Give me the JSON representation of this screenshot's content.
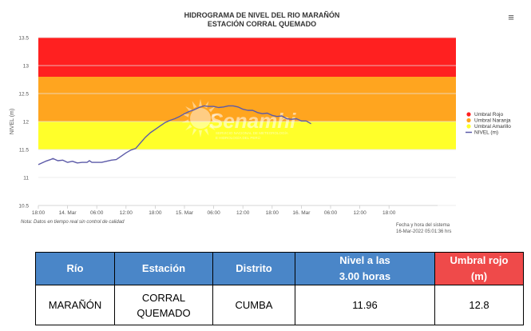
{
  "chart_data": {
    "type": "line",
    "title": "HIDROGRAMA DE NIVEL DEL RIO MARAÑÓN",
    "subtitle": "ESTACIÓN CORRAL QUEMADO",
    "ylabel": "NIVEL (m)",
    "ylim": [
      10.5,
      13.5
    ],
    "yticks": [
      "10.5",
      "11",
      "11.5",
      "12",
      "12.5",
      "13",
      "13.5"
    ],
    "x_range_hours": [
      0,
      60.5
    ],
    "xticks": [
      {
        "label": "18:00",
        "h": 0
      },
      {
        "label": "14. Mar",
        "h": 6
      },
      {
        "label": "06:00",
        "h": 12
      },
      {
        "label": "12:00",
        "h": 18
      },
      {
        "label": "18:00",
        "h": 24
      },
      {
        "label": "15. Mar",
        "h": 30
      },
      {
        "label": "06:00",
        "h": 36
      },
      {
        "label": "12:00",
        "h": 42
      },
      {
        "label": "18:00",
        "h": 48
      },
      {
        "label": "16. Mar",
        "h": 54
      },
      {
        "label": "06:00",
        "h": 60
      },
      {
        "label": "12:00",
        "h": 66
      },
      {
        "label": "18:00",
        "h": 72
      }
    ],
    "bands": [
      {
        "name": "Umbral Rojo",
        "from": 12.8,
        "to": 13.5,
        "color": "#ff2020"
      },
      {
        "name": "Umbral Naranja",
        "from": 12.0,
        "to": 12.8,
        "color": "#ffa51f"
      },
      {
        "name": "Umbral Amarillo",
        "from": 11.5,
        "to": 12.0,
        "color": "#ffff2a"
      }
    ],
    "series": [
      {
        "name": "NIVEL (m)",
        "color": "#5c5aa8",
        "x": [
          0,
          0.5,
          1.5,
          2.5,
          3,
          4,
          5,
          6,
          7,
          8,
          9,
          10,
          10.5,
          11,
          12,
          13,
          14,
          15,
          16,
          17,
          18,
          19,
          20,
          21,
          22,
          23,
          24,
          25,
          26,
          27,
          28,
          29,
          30,
          31,
          32,
          33,
          34,
          35,
          36,
          37,
          38,
          39,
          40,
          41,
          42,
          43,
          44,
          45,
          46,
          47,
          48,
          49,
          50,
          51,
          52,
          53,
          54,
          55,
          56
        ],
        "y": [
          11.23,
          11.25,
          11.29,
          11.32,
          11.34,
          11.3,
          11.31,
          11.27,
          11.29,
          11.26,
          11.27,
          11.27,
          11.3,
          11.27,
          11.27,
          11.27,
          11.29,
          11.31,
          11.32,
          11.38,
          11.44,
          11.49,
          11.52,
          11.62,
          11.72,
          11.8,
          11.86,
          11.92,
          11.98,
          12.02,
          12.05,
          12.09,
          12.14,
          12.18,
          12.21,
          12.25,
          12.28,
          12.27,
          12.27,
          12.25,
          12.26,
          12.28,
          12.28,
          12.26,
          12.22,
          12.2,
          12.2,
          12.16,
          12.14,
          12.15,
          12.11,
          12.09,
          12.1,
          12.05,
          12.04,
          12.05,
          12.01,
          12.01,
          11.96
        ]
      }
    ],
    "legend": {
      "position": "right",
      "entries": [
        "Umbral Rojo",
        "Umbral Naranja",
        "Umbral Amarillo",
        "NIVEL (m)"
      ]
    },
    "note": "Nota: Datos en tiempo real sin control de calidad",
    "timestamp_label": "Fecha y hora del sistema",
    "timestamp_value": "16-Mar-2022 05:01:36 hrs",
    "watermark": "Senamhi",
    "watermark_sub": [
      "SERVICIO NACIONAL DE METEOROLOGÍA",
      "E HIDROLOGÍA DEL PERÚ"
    ],
    "grid": true
  },
  "menu_icon": "hamburger-menu-icon",
  "table": {
    "headers": [
      {
        "lines": [
          "Río"
        ],
        "accent": "#4a86c8"
      },
      {
        "lines": [
          "Estación"
        ],
        "accent": "#4a86c8"
      },
      {
        "lines": [
          "Distrito"
        ],
        "accent": "#4a86c8"
      },
      {
        "lines": [
          "Nivel a las",
          "3.00 horas"
        ],
        "accent": "#4a86c8"
      },
      {
        "lines": [
          "Umbral rojo",
          "(m)"
        ],
        "accent": "#ef4a4a"
      }
    ],
    "row": [
      {
        "lines": [
          "MARAÑÓN"
        ]
      },
      {
        "lines": [
          "CORRAL",
          "QUEMADO"
        ]
      },
      {
        "lines": [
          "CUMBA"
        ]
      },
      {
        "lines": [
          "11.96"
        ]
      },
      {
        "lines": [
          "12.8"
        ]
      }
    ]
  }
}
